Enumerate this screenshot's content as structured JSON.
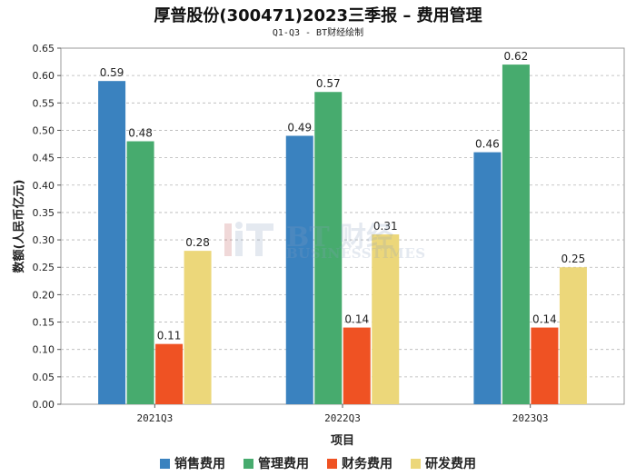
{
  "header": {
    "title": "厚普股份(300471)2023三季报 – 费用管理",
    "subtitle": "Q1-Q3 - BT财经绘制"
  },
  "watermark": {
    "brand": "BT 财经",
    "brand_en": "BUSINESSTIMES"
  },
  "chart_data": {
    "type": "bar",
    "title": "厚普股份(300471)2023三季报 – 费用管理",
    "subtitle": "Q1-Q3 - BT财经绘制",
    "xlabel": "项目",
    "ylabel": "数额(人民币亿元)",
    "categories": [
      "2021Q3",
      "2022Q3",
      "2023Q3"
    ],
    "series": [
      {
        "name": "销售费用",
        "color": "#3a82bf",
        "values": [
          0.59,
          0.49,
          0.46
        ]
      },
      {
        "name": "管理费用",
        "color": "#47ab6e",
        "values": [
          0.48,
          0.57,
          0.62
        ]
      },
      {
        "name": "财务费用",
        "color": "#ef5223",
        "values": [
          0.11,
          0.14,
          0.14
        ]
      },
      {
        "name": "研发费用",
        "color": "#ecd77a",
        "values": [
          0.28,
          0.31,
          0.25
        ]
      }
    ],
    "ylim": [
      0,
      0.65
    ],
    "yticks": [
      "0.00",
      "0.05",
      "0.10",
      "0.15",
      "0.20",
      "0.25",
      "0.30",
      "0.35",
      "0.40",
      "0.45",
      "0.50",
      "0.55",
      "0.60",
      "0.65"
    ],
    "grid": true,
    "legend": "bottom-center"
  }
}
